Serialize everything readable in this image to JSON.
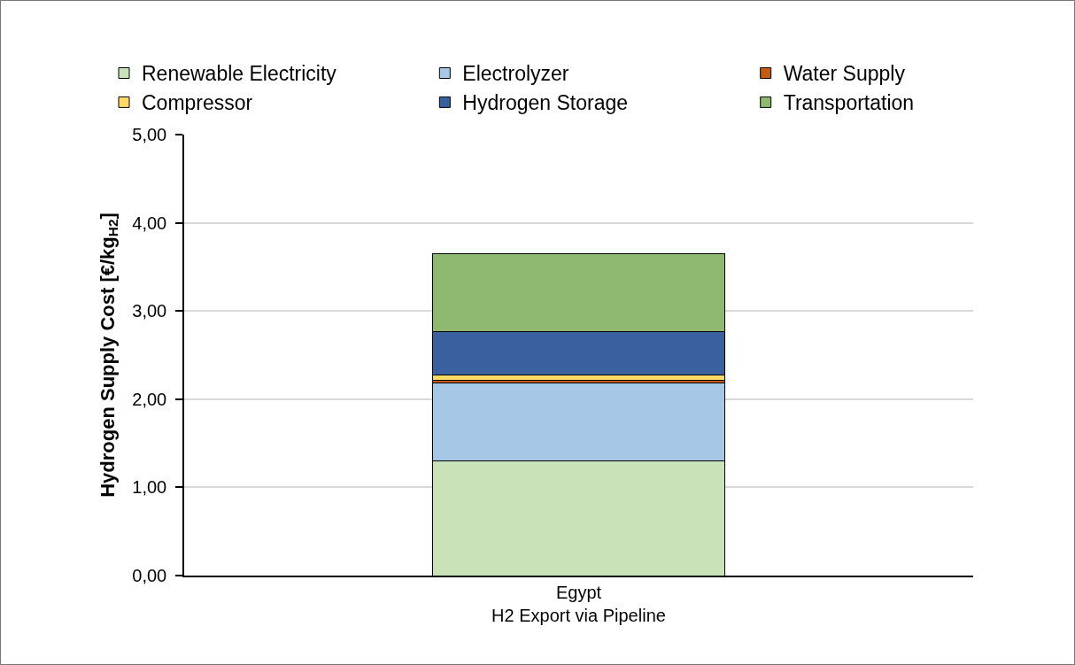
{
  "chart_data": {
    "type": "bar",
    "stacked": true,
    "ylabel": "Hydrogen Supply Cost [€/kg$_{H2}$]",
    "categories": [
      "Egypt\nH2 Export via Pipeline"
    ],
    "series": [
      {
        "name": "Renewable Electricity",
        "color": "#c9e2b8",
        "values": [
          1.3
        ]
      },
      {
        "name": "Electrolyzer",
        "color": "#a6c8e6",
        "values": [
          0.88
        ]
      },
      {
        "name": "Water Supply",
        "color": "#c55a11",
        "values": [
          0.03
        ]
      },
      {
        "name": "Compressor",
        "color": "#ffd966",
        "values": [
          0.06
        ]
      },
      {
        "name": "Hydrogen Storage",
        "color": "#3a60a0",
        "values": [
          0.5
        ]
      },
      {
        "name": "Transportation",
        "color": "#8fb870",
        "values": [
          0.88
        ]
      }
    ],
    "ylim": [
      0,
      5
    ],
    "yticks": [
      {
        "value": 0,
        "label": "0,00"
      },
      {
        "value": 1,
        "label": "1,00"
      },
      {
        "value": 2,
        "label": "2,00"
      },
      {
        "value": 3,
        "label": "3,00"
      },
      {
        "value": 4,
        "label": "4,00"
      },
      {
        "value": 5,
        "label": "5,00"
      }
    ],
    "grid": "y",
    "legend": "top"
  }
}
